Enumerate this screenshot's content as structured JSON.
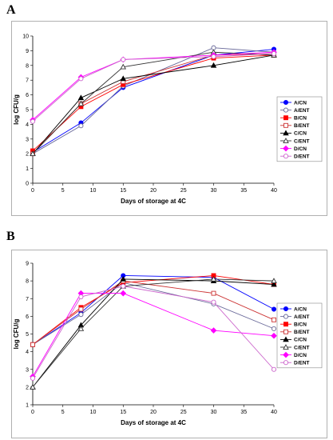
{
  "panel_labels": [
    "A",
    "B"
  ],
  "chart_data": [
    {
      "type": "line",
      "panel": "A",
      "xlabel": "Days of storage at 4C",
      "ylabel": "log CFU/g",
      "xlim": [
        0,
        40
      ],
      "ylim": [
        0,
        10
      ],
      "xticks": [
        0,
        5,
        10,
        15,
        20,
        25,
        30,
        35,
        40
      ],
      "yticks": [
        0,
        1,
        2,
        3,
        4,
        5,
        6,
        7,
        8,
        9,
        10
      ],
      "grid": false,
      "legend_position": "right",
      "x": [
        0,
        8,
        15,
        30,
        40
      ],
      "series": [
        {
          "name": "A/CN",
          "color": "#0000ff",
          "marker": "circle",
          "filled": true,
          "values": [
            2.1,
            4.1,
            6.5,
            8.7,
            9.1
          ]
        },
        {
          "name": "A/ENT",
          "color": "#6a6a9a",
          "marker": "circle",
          "filled": false,
          "values": [
            2.0,
            3.9,
            6.6,
            9.2,
            8.9
          ]
        },
        {
          "name": "B/CN",
          "color": "#ff0000",
          "marker": "square",
          "filled": true,
          "values": [
            2.2,
            5.2,
            6.7,
            8.5,
            8.7
          ]
        },
        {
          "name": "B/ENT",
          "color": "#cc3333",
          "marker": "square",
          "filled": false,
          "values": [
            2.0,
            5.4,
            6.9,
            8.7,
            8.8
          ]
        },
        {
          "name": "C/CN",
          "color": "#000000",
          "marker": "triangle",
          "filled": true,
          "values": [
            2.0,
            5.8,
            7.1,
            8.0,
            8.7
          ]
        },
        {
          "name": "C/ENT",
          "color": "#333333",
          "marker": "triangle",
          "filled": false,
          "values": [
            2.0,
            5.4,
            7.9,
            8.9,
            8.7
          ]
        },
        {
          "name": "D/CN",
          "color": "#ff00ff",
          "marker": "diamond",
          "filled": true,
          "values": [
            4.3,
            7.2,
            8.4,
            8.7,
            8.9
          ]
        },
        {
          "name": "D/ENT",
          "color": "#cc66cc",
          "marker": "circle",
          "filled": false,
          "values": [
            4.2,
            7.1,
            8.4,
            8.6,
            8.8
          ]
        }
      ]
    },
    {
      "type": "line",
      "panel": "B",
      "xlabel": "Days of storage at 4C",
      "ylabel": "log CFU/g",
      "xlim": [
        0,
        40
      ],
      "ylim": [
        1,
        9
      ],
      "xticks": [
        0,
        5,
        10,
        15,
        20,
        25,
        30,
        35,
        40
      ],
      "yticks": [
        1,
        2,
        3,
        4,
        5,
        6,
        7,
        8,
        9
      ],
      "grid": false,
      "legend_position": "right",
      "x": [
        0,
        8,
        15,
        30,
        40
      ],
      "series": [
        {
          "name": "A/CN",
          "color": "#0000ff",
          "marker": "circle",
          "filled": true,
          "values": [
            4.4,
            6.2,
            8.3,
            8.2,
            6.4
          ]
        },
        {
          "name": "A/ENT",
          "color": "#6a6a9a",
          "marker": "circle",
          "filled": false,
          "values": [
            4.4,
            6.1,
            7.9,
            6.7,
            5.3
          ]
        },
        {
          "name": "B/CN",
          "color": "#ff0000",
          "marker": "square",
          "filled": true,
          "values": [
            4.4,
            6.5,
            7.9,
            8.3,
            7.8
          ]
        },
        {
          "name": "B/ENT",
          "color": "#cc3333",
          "marker": "square",
          "filled": false,
          "values": [
            4.4,
            6.4,
            8.0,
            7.3,
            5.8
          ]
        },
        {
          "name": "C/CN",
          "color": "#000000",
          "marker": "triangle",
          "filled": true,
          "values": [
            2.0,
            5.5,
            8.1,
            8.0,
            7.8
          ]
        },
        {
          "name": "C/ENT",
          "color": "#333333",
          "marker": "triangle",
          "filled": false,
          "values": [
            2.0,
            5.3,
            7.7,
            8.1,
            8.0
          ]
        },
        {
          "name": "D/CN",
          "color": "#ff00ff",
          "marker": "diamond",
          "filled": true,
          "values": [
            2.6,
            7.3,
            7.3,
            5.2,
            4.9
          ]
        },
        {
          "name": "D/ENT",
          "color": "#cc66cc",
          "marker": "circle",
          "filled": false,
          "values": [
            2.5,
            7.1,
            7.7,
            6.8,
            3.0
          ]
        }
      ]
    }
  ]
}
